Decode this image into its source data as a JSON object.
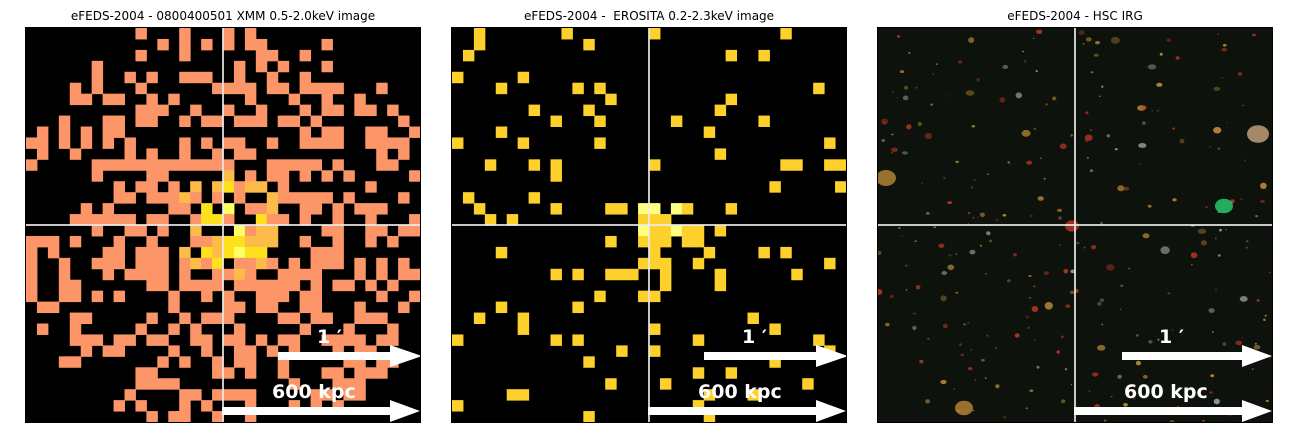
{
  "panels": [
    {
      "title": "eFEDS-2004 - 0800400501 XMM 0.5-2.0keV image",
      "kind": "xmm",
      "scale_angle_label": "1 ′",
      "scale_distance_label": "600 kpc",
      "colors": {
        "low": "#fc9567",
        "mid": "#fdbb4a",
        "high": "#ffe01c",
        "peak": "#ffff66",
        "background": "#000000"
      }
    },
    {
      "title": "eFEDS-2004 -  EROSITA 0.2-2.3keV image",
      "kind": "erosita",
      "scale_angle_label": "1 ′",
      "scale_distance_label": "600 kpc",
      "colors": {
        "low": "#fdd02c",
        "high": "#ffff80",
        "peak": "#ffffff",
        "background": "#000000"
      }
    },
    {
      "title": "eFEDS-2004 - HSC IRG",
      "kind": "hsc",
      "scale_angle_label": "1 ′",
      "scale_distance_label": "600 kpc",
      "colors": {
        "background": "#0d120c",
        "red_source": "#c83a22",
        "orange_source": "#c8913a",
        "green_source": "#2be07a"
      }
    }
  ]
}
